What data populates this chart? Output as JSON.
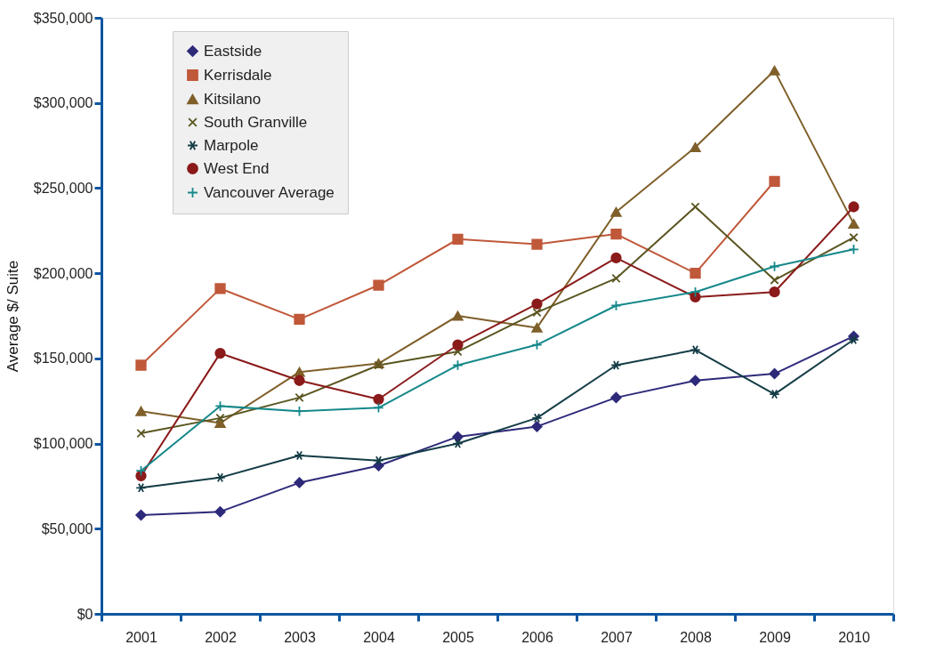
{
  "chart_data": {
    "type": "line",
    "ylabel": "Average $/ Suite",
    "categories": [
      "2001",
      "2002",
      "2003",
      "2004",
      "2005",
      "2006",
      "2007",
      "2008",
      "2009",
      "2010"
    ],
    "ylim": [
      0,
      350000
    ],
    "yticks": [
      {
        "value": 0,
        "label": "$0"
      },
      {
        "value": 50000,
        "label": "$50,000"
      },
      {
        "value": 100000,
        "label": "$100,000"
      },
      {
        "value": 150000,
        "label": "$150,000"
      },
      {
        "value": 200000,
        "label": "$200,000"
      },
      {
        "value": 250000,
        "label": "$250,000"
      },
      {
        "value": 300000,
        "label": "$300,000"
      },
      {
        "value": 350000,
        "label": "$350,000"
      }
    ],
    "grid": false,
    "legend": "top left",
    "line_style": "solid",
    "series": [
      {
        "name": "Eastside",
        "color": "#2e2a7a",
        "marker": "diamond",
        "values": [
          58000,
          60000,
          77000,
          87000,
          104000,
          110000,
          127000,
          137000,
          141000,
          163000
        ]
      },
      {
        "name": "Kerrisdale",
        "color": "#c0583a",
        "marker": "square",
        "values": [
          146000,
          191000,
          173000,
          193000,
          220000,
          217000,
          223000,
          200000,
          254000,
          null
        ]
      },
      {
        "name": "Kitsilano",
        "color": "#7f5f2a",
        "marker": "triangle",
        "values": [
          119000,
          112000,
          142000,
          147000,
          175000,
          168000,
          236000,
          274000,
          319000,
          229000
        ]
      },
      {
        "name": "South Granville",
        "color": "#5a5520",
        "marker": "cross",
        "values": [
          106000,
          115000,
          127000,
          146000,
          154000,
          177000,
          197000,
          239000,
          196000,
          221000
        ]
      },
      {
        "name": "Marpole",
        "color": "#143c46",
        "marker": "cross",
        "values": [
          74000,
          80000,
          93000,
          90000,
          100000,
          115000,
          146000,
          155000,
          129000,
          161000
        ]
      },
      {
        "name": "West End",
        "color": "#8b1a1a",
        "marker": "circle",
        "values": [
          81000,
          153000,
          137000,
          126000,
          158000,
          182000,
          209000,
          186000,
          189000,
          239000
        ]
      },
      {
        "name": "Vancouver Average",
        "color": "#16888a",
        "marker": "plus",
        "values": [
          84000,
          122000,
          119000,
          121000,
          146000,
          158000,
          181000,
          189000,
          204000,
          214000
        ]
      }
    ]
  }
}
